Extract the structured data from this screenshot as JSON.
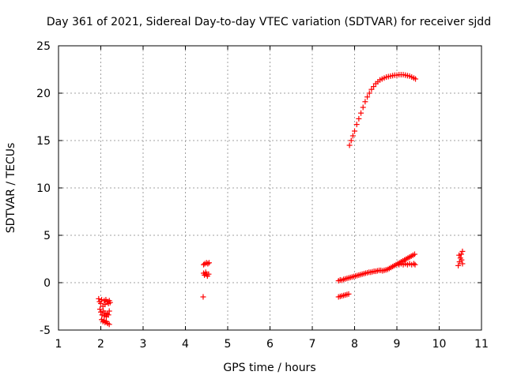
{
  "chart_data": {
    "type": "scatter",
    "title": "Day 361 of 2021, Sidereal Day-to-day VTEC variation (SDTVAR) for receiver sjdd",
    "xlabel": "GPS time / hours",
    "ylabel": "SDTVAR / TECUs",
    "xlim": [
      1,
      11
    ],
    "ylim": [
      -5,
      25
    ],
    "xticks": [
      "1",
      "2",
      "3",
      "4",
      "5",
      "6",
      "7",
      "8",
      "9",
      "10",
      "11"
    ],
    "yticks": [
      "-5",
      "0",
      "5",
      "10",
      "15",
      "20",
      "25"
    ],
    "grid": true,
    "marker": "+",
    "color": "#ff0000",
    "series": [
      {
        "name": "SDTVAR",
        "points": [
          [
            1.95,
            -1.7
          ],
          [
            1.97,
            -2.0
          ],
          [
            2.0,
            -2.2
          ],
          [
            2.02,
            -1.8
          ],
          [
            2.05,
            -2.5
          ],
          [
            2.08,
            -1.9
          ],
          [
            2.1,
            -2.3
          ],
          [
            2.12,
            -1.8
          ],
          [
            2.15,
            -2.0
          ],
          [
            2.18,
            -2.2
          ],
          [
            2.2,
            -1.9
          ],
          [
            2.22,
            -2.1
          ],
          [
            1.98,
            -2.8
          ],
          [
            2.0,
            -3.1
          ],
          [
            2.03,
            -3.4
          ],
          [
            2.06,
            -3.0
          ],
          [
            2.08,
            -3.5
          ],
          [
            2.1,
            -3.2
          ],
          [
            2.13,
            -3.6
          ],
          [
            2.15,
            -3.3
          ],
          [
            2.18,
            -3.4
          ],
          [
            2.2,
            -3.0
          ],
          [
            2.02,
            -3.9
          ],
          [
            2.05,
            -4.1
          ],
          [
            2.08,
            -4.0
          ],
          [
            2.1,
            -4.2
          ],
          [
            2.13,
            -4.1
          ],
          [
            2.16,
            -4.3
          ],
          [
            2.2,
            -4.4
          ],
          [
            4.42,
            -1.5
          ],
          [
            4.43,
            1.9
          ],
          [
            4.46,
            2.0
          ],
          [
            4.5,
            2.1
          ],
          [
            4.53,
            2.0
          ],
          [
            4.56,
            2.1
          ],
          [
            4.43,
            1.0
          ],
          [
            4.45,
            0.8
          ],
          [
            4.48,
            1.1
          ],
          [
            4.5,
            0.9
          ],
          [
            4.52,
            0.7
          ],
          [
            4.55,
            0.9
          ],
          [
            7.62,
            0.2
          ],
          [
            7.66,
            0.3
          ],
          [
            7.7,
            0.25
          ],
          [
            7.74,
            0.35
          ],
          [
            7.78,
            0.4
          ],
          [
            7.82,
            0.45
          ],
          [
            7.86,
            0.5
          ],
          [
            7.9,
            0.55
          ],
          [
            7.94,
            0.6
          ],
          [
            7.98,
            0.65
          ],
          [
            8.02,
            0.7
          ],
          [
            8.06,
            0.75
          ],
          [
            8.1,
            0.8
          ],
          [
            8.14,
            0.85
          ],
          [
            8.18,
            0.9
          ],
          [
            8.22,
            0.95
          ],
          [
            8.26,
            1.0
          ],
          [
            8.3,
            1.05
          ],
          [
            8.34,
            1.1
          ],
          [
            8.38,
            1.1
          ],
          [
            8.42,
            1.15
          ],
          [
            8.46,
            1.2
          ],
          [
            8.5,
            1.2
          ],
          [
            8.54,
            1.25
          ],
          [
            8.58,
            1.3
          ],
          [
            8.62,
            1.3
          ],
          [
            8.66,
            1.25
          ],
          [
            8.7,
            1.3
          ],
          [
            8.74,
            1.35
          ],
          [
            8.78,
            1.4
          ],
          [
            8.82,
            1.5
          ],
          [
            8.86,
            1.6
          ],
          [
            8.9,
            1.7
          ],
          [
            8.94,
            1.8
          ],
          [
            8.98,
            1.9
          ],
          [
            9.02,
            2.0
          ],
          [
            9.06,
            2.1
          ],
          [
            9.1,
            2.2
          ],
          [
            9.14,
            2.3
          ],
          [
            9.18,
            2.4
          ],
          [
            9.22,
            2.5
          ],
          [
            9.26,
            2.6
          ],
          [
            9.3,
            2.7
          ],
          [
            9.34,
            2.8
          ],
          [
            9.38,
            2.9
          ],
          [
            9.42,
            3.0
          ],
          [
            9.05,
            1.9
          ],
          [
            9.1,
            2.0
          ],
          [
            9.15,
            1.9
          ],
          [
            9.2,
            2.0
          ],
          [
            9.25,
            1.9
          ],
          [
            9.3,
            2.0
          ],
          [
            9.35,
            1.9
          ],
          [
            9.4,
            2.0
          ],
          [
            9.43,
            1.9
          ],
          [
            7.62,
            -1.5
          ],
          [
            7.66,
            -1.45
          ],
          [
            7.7,
            -1.4
          ],
          [
            7.74,
            -1.35
          ],
          [
            7.78,
            -1.3
          ],
          [
            7.82,
            -1.25
          ],
          [
            7.86,
            -1.2
          ],
          [
            7.88,
            14.5
          ],
          [
            7.92,
            15.0
          ],
          [
            7.96,
            15.5
          ],
          [
            8.0,
            16.0
          ],
          [
            8.05,
            16.7
          ],
          [
            8.1,
            17.3
          ],
          [
            8.15,
            17.9
          ],
          [
            8.2,
            18.5
          ],
          [
            8.25,
            19.1
          ],
          [
            8.3,
            19.6
          ],
          [
            8.35,
            20.0
          ],
          [
            8.4,
            20.4
          ],
          [
            8.45,
            20.7
          ],
          [
            8.5,
            21.0
          ],
          [
            8.55,
            21.2
          ],
          [
            8.6,
            21.4
          ],
          [
            8.65,
            21.5
          ],
          [
            8.7,
            21.6
          ],
          [
            8.75,
            21.7
          ],
          [
            8.8,
            21.75
          ],
          [
            8.85,
            21.8
          ],
          [
            8.9,
            21.85
          ],
          [
            8.95,
            21.9
          ],
          [
            9.0,
            21.9
          ],
          [
            9.05,
            21.95
          ],
          [
            9.1,
            21.95
          ],
          [
            9.15,
            21.95
          ],
          [
            9.2,
            21.9
          ],
          [
            9.25,
            21.85
          ],
          [
            9.3,
            21.8
          ],
          [
            9.35,
            21.7
          ],
          [
            9.4,
            21.6
          ],
          [
            9.44,
            21.5
          ],
          [
            10.45,
            1.8
          ],
          [
            10.48,
            2.2
          ],
          [
            10.5,
            2.6
          ],
          [
            10.52,
            3.0
          ],
          [
            10.55,
            3.3
          ],
          [
            10.47,
            2.9
          ],
          [
            10.53,
            2.4
          ],
          [
            10.55,
            2.0
          ]
        ]
      }
    ]
  }
}
